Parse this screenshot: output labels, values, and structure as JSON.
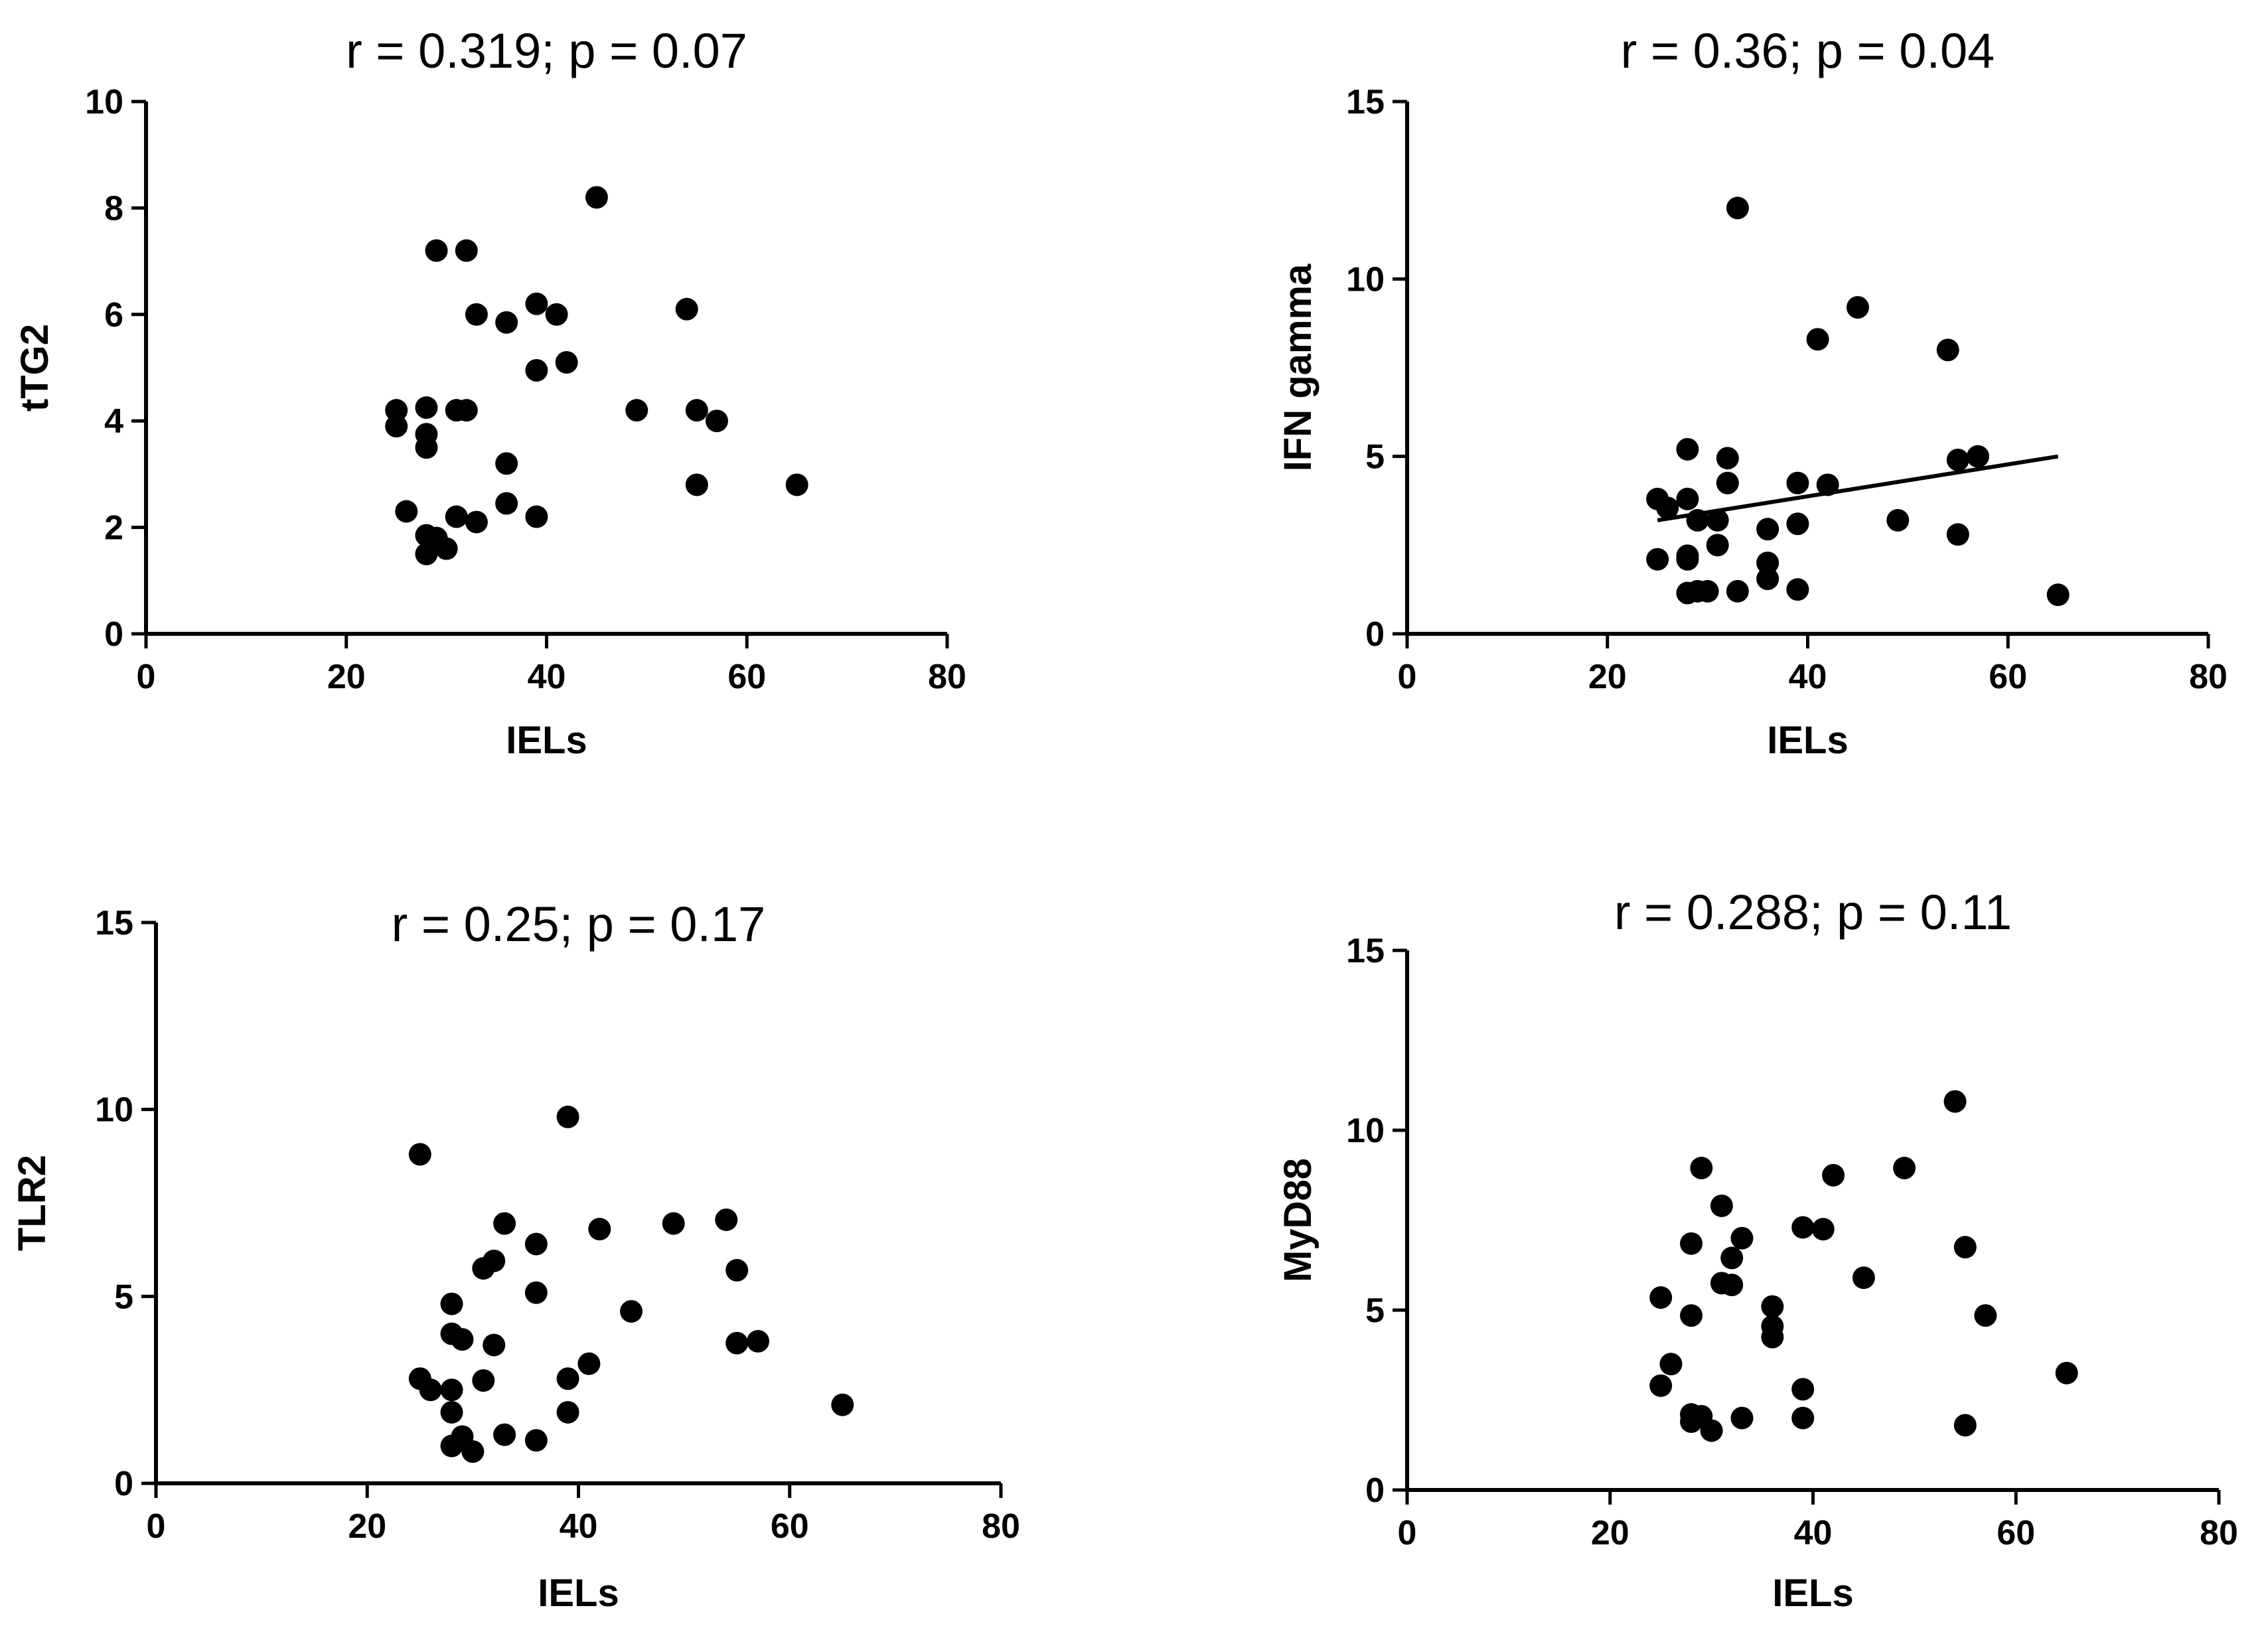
{
  "chart_data": [
    {
      "id": "ttg2",
      "type": "scatter",
      "title": "r = 0.319; p = 0.07",
      "xlabel": "IELs",
      "ylabel": "tTG2",
      "xlim": [
        0,
        80
      ],
      "ylim": [
        0,
        10
      ],
      "xticks": [
        0,
        20,
        40,
        60,
        80
      ],
      "yticks": [
        0,
        2,
        4,
        6,
        8,
        10
      ],
      "grid": false,
      "points": [
        {
          "x": 25,
          "y": 4.2
        },
        {
          "x": 25,
          "y": 3.9
        },
        {
          "x": 26,
          "y": 2.3
        },
        {
          "x": 28,
          "y": 4.25
        },
        {
          "x": 28,
          "y": 3.75
        },
        {
          "x": 28,
          "y": 3.5
        },
        {
          "x": 28,
          "y": 1.85
        },
        {
          "x": 28,
          "y": 1.5
        },
        {
          "x": 29,
          "y": 7.2
        },
        {
          "x": 29,
          "y": 1.8
        },
        {
          "x": 30,
          "y": 1.6
        },
        {
          "x": 31,
          "y": 4.2
        },
        {
          "x": 31,
          "y": 2.2
        },
        {
          "x": 32,
          "y": 4.2
        },
        {
          "x": 32,
          "y": 7.2
        },
        {
          "x": 33,
          "y": 6.0
        },
        {
          "x": 33,
          "y": 2.1
        },
        {
          "x": 36,
          "y": 5.85
        },
        {
          "x": 36,
          "y": 3.2
        },
        {
          "x": 36,
          "y": 2.45
        },
        {
          "x": 39,
          "y": 6.2
        },
        {
          "x": 39,
          "y": 4.95
        },
        {
          "x": 39,
          "y": 2.2
        },
        {
          "x": 41,
          "y": 6.0
        },
        {
          "x": 42,
          "y": 5.1
        },
        {
          "x": 45,
          "y": 8.2
        },
        {
          "x": 49,
          "y": 4.2
        },
        {
          "x": 54,
          "y": 6.1
        },
        {
          "x": 55,
          "y": 4.2
        },
        {
          "x": 55,
          "y": 2.8
        },
        {
          "x": 57,
          "y": 4.0
        },
        {
          "x": 65,
          "y": 2.8
        }
      ]
    },
    {
      "id": "ifn",
      "type": "scatter",
      "title": "r = 0.36; p = 0.04",
      "xlabel": "IELs",
      "ylabel": "IFN gamma",
      "xlim": [
        0,
        80
      ],
      "ylim": [
        0,
        15
      ],
      "xticks": [
        0,
        20,
        40,
        60,
        80
      ],
      "yticks": [
        0,
        5,
        10,
        15
      ],
      "grid": false,
      "fit_line": {
        "x": [
          25,
          65
        ],
        "y": [
          3.2,
          5.0
        ]
      },
      "points": [
        {
          "x": 25,
          "y": 3.8
        },
        {
          "x": 25,
          "y": 2.1
        },
        {
          "x": 26,
          "y": 3.55
        },
        {
          "x": 28,
          "y": 5.2
        },
        {
          "x": 28,
          "y": 3.8
        },
        {
          "x": 28,
          "y": 2.2
        },
        {
          "x": 28,
          "y": 2.1
        },
        {
          "x": 28,
          "y": 1.15
        },
        {
          "x": 29,
          "y": 3.2
        },
        {
          "x": 29,
          "y": 1.2
        },
        {
          "x": 30,
          "y": 1.2
        },
        {
          "x": 31,
          "y": 3.2
        },
        {
          "x": 31,
          "y": 2.5
        },
        {
          "x": 32,
          "y": 4.95
        },
        {
          "x": 32,
          "y": 4.25
        },
        {
          "x": 33,
          "y": 12.0
        },
        {
          "x": 33,
          "y": 1.2
        },
        {
          "x": 36,
          "y": 2.95
        },
        {
          "x": 36,
          "y": 2.0
        },
        {
          "x": 36,
          "y": 1.55
        },
        {
          "x": 39,
          "y": 4.25
        },
        {
          "x": 39,
          "y": 3.1
        },
        {
          "x": 39,
          "y": 1.25
        },
        {
          "x": 41,
          "y": 8.3
        },
        {
          "x": 42,
          "y": 4.2
        },
        {
          "x": 45,
          "y": 9.2
        },
        {
          "x": 49,
          "y": 3.2
        },
        {
          "x": 54,
          "y": 8.0
        },
        {
          "x": 55,
          "y": 4.9
        },
        {
          "x": 55,
          "y": 2.8
        },
        {
          "x": 57,
          "y": 5.0
        },
        {
          "x": 65,
          "y": 1.1
        }
      ]
    },
    {
      "id": "tlr2",
      "type": "scatter",
      "title": "r = 0.25; p = 0.17",
      "xlabel": "IELs",
      "ylabel": "TLR2",
      "xlim": [
        0,
        80
      ],
      "ylim": [
        0,
        15
      ],
      "xticks": [
        0,
        20,
        40,
        60,
        80
      ],
      "yticks": [
        0,
        5,
        10,
        15
      ],
      "grid": false,
      "points": [
        {
          "x": 25,
          "y": 8.8
        },
        {
          "x": 25,
          "y": 2.8
        },
        {
          "x": 26,
          "y": 2.5
        },
        {
          "x": 28,
          "y": 4.8
        },
        {
          "x": 28,
          "y": 4.0
        },
        {
          "x": 28,
          "y": 2.5
        },
        {
          "x": 28,
          "y": 1.9
        },
        {
          "x": 28,
          "y": 1.0
        },
        {
          "x": 29,
          "y": 3.85
        },
        {
          "x": 29,
          "y": 1.25
        },
        {
          "x": 30,
          "y": 0.85
        },
        {
          "x": 31,
          "y": 5.75
        },
        {
          "x": 31,
          "y": 2.75
        },
        {
          "x": 32,
          "y": 5.95
        },
        {
          "x": 32,
          "y": 3.7
        },
        {
          "x": 33,
          "y": 6.95
        },
        {
          "x": 33,
          "y": 1.3
        },
        {
          "x": 36,
          "y": 6.4
        },
        {
          "x": 36,
          "y": 5.1
        },
        {
          "x": 36,
          "y": 1.15
        },
        {
          "x": 39,
          "y": 9.8
        },
        {
          "x": 39,
          "y": 2.8
        },
        {
          "x": 39,
          "y": 1.9
        },
        {
          "x": 41,
          "y": 3.2
        },
        {
          "x": 42,
          "y": 6.8
        },
        {
          "x": 45,
          "y": 4.6
        },
        {
          "x": 49,
          "y": 6.95
        },
        {
          "x": 54,
          "y": 7.05
        },
        {
          "x": 55,
          "y": 5.7
        },
        {
          "x": 55,
          "y": 3.75
        },
        {
          "x": 57,
          "y": 3.8
        },
        {
          "x": 65,
          "y": 2.1
        }
      ]
    },
    {
      "id": "myd88",
      "type": "scatter",
      "title": "r = 0.288; p = 0.11",
      "xlabel": "IELs",
      "ylabel": "MyD88",
      "xlim": [
        0,
        80
      ],
      "ylim": [
        0,
        15
      ],
      "xticks": [
        0,
        20,
        40,
        60,
        80
      ],
      "yticks": [
        0,
        5,
        10,
        15
      ],
      "grid": false,
      "points": [
        {
          "x": 25,
          "y": 5.35
        },
        {
          "x": 25,
          "y": 2.9
        },
        {
          "x": 26,
          "y": 3.5
        },
        {
          "x": 28,
          "y": 6.85
        },
        {
          "x": 28,
          "y": 4.85
        },
        {
          "x": 28,
          "y": 2.1
        },
        {
          "x": 28,
          "y": 1.9
        },
        {
          "x": 29,
          "y": 8.95
        },
        {
          "x": 29,
          "y": 2.05
        },
        {
          "x": 30,
          "y": 1.65
        },
        {
          "x": 31,
          "y": 7.9
        },
        {
          "x": 31,
          "y": 5.75
        },
        {
          "x": 32,
          "y": 6.45
        },
        {
          "x": 32,
          "y": 5.7
        },
        {
          "x": 33,
          "y": 7.0
        },
        {
          "x": 33,
          "y": 2.0
        },
        {
          "x": 36,
          "y": 5.1
        },
        {
          "x": 36,
          "y": 4.55
        },
        {
          "x": 36,
          "y": 4.25
        },
        {
          "x": 39,
          "y": 7.3
        },
        {
          "x": 39,
          "y": 2.8
        },
        {
          "x": 39,
          "y": 2.0
        },
        {
          "x": 41,
          "y": 7.25
        },
        {
          "x": 42,
          "y": 8.75
        },
        {
          "x": 45,
          "y": 5.9
        },
        {
          "x": 49,
          "y": 8.95
        },
        {
          "x": 54,
          "y": 10.8
        },
        {
          "x": 55,
          "y": 6.75
        },
        {
          "x": 55,
          "y": 1.8
        },
        {
          "x": 57,
          "y": 4.85
        },
        {
          "x": 65,
          "y": 3.25
        }
      ]
    }
  ]
}
